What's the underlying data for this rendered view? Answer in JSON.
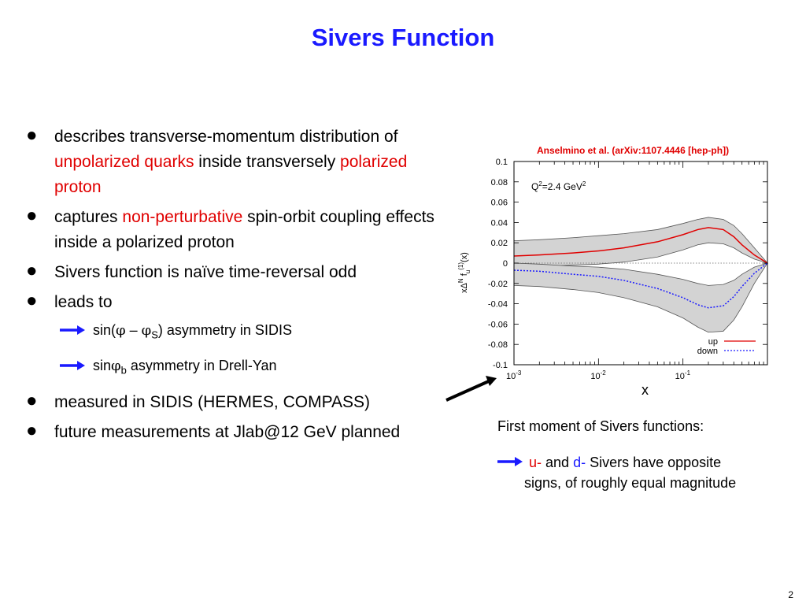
{
  "title": "Sivers Function",
  "bullets": {
    "b1": {
      "t1": "describes transverse-momentum distribution of ",
      "t2": "unpolarized quarks",
      "t3": " inside transversely ",
      "t4": "polarized proton"
    },
    "b2": {
      "t1": "captures ",
      "t2": "non-perturbative",
      "t3": " spin-orbit coupling effects inside a polarized proton"
    },
    "b3": "Sivers function is naïve time-reversal odd",
    "b4": "leads to",
    "sub1": {
      "a": "sin(",
      "phi": "φ",
      "dash": " – ",
      "phiS": "φ",
      "S": "S",
      "b": ") asymmetry in SIDIS"
    },
    "sub2": {
      "a": "sin",
      "phi": "φ",
      "sub": "b",
      "b": " asymmetry in Drell-Yan"
    },
    "b5": "measured in SIDIS (HERMES, COMPASS)",
    "b6": "future measurements at Jlab@12 GeV planned"
  },
  "citation": "Anselmino et al. (arXiv:1107.4446 [hep-ph])",
  "caption": {
    "line1": "First moment of Sivers functions:",
    "u": "u-",
    "and": " and ",
    "d": "d-",
    "rest": " Sivers have opposite",
    "line2": "signs, of roughly equal magnitude"
  },
  "page_number": "2",
  "colors": {
    "title": "#1a1aff",
    "highlight_red": "#e00000",
    "up": "#e00000",
    "down": "#1a1aff",
    "band": "#d3d3d3"
  },
  "chart_data": {
    "type": "line",
    "title": "",
    "annotation": "Q²=2.4 GeV²",
    "xlabel": "x",
    "ylabel": "xΔ^N f_u^(1)(x)",
    "xscale": "log",
    "xlim": [
      0.001,
      1
    ],
    "ylim": [
      -0.1,
      0.1
    ],
    "x_ticks": [
      "10-3",
      "10-2",
      "10-1"
    ],
    "y_ticks": [
      0.1,
      0.08,
      0.06,
      0.04,
      0.02,
      0,
      -0.02,
      -0.04,
      -0.06,
      -0.08,
      -0.1
    ],
    "y_tick_labels": [
      "0.1",
      "0.08",
      "0.06",
      "0.04",
      "0.02",
      "0",
      "-0.02",
      "-0.04",
      "-0.06",
      "-0.08",
      "-0.1"
    ],
    "legend_position": "bottom-right",
    "series": [
      {
        "name": "up",
        "color": "#e00000",
        "dash": "solid",
        "points": [
          [
            0.001,
            0.007
          ],
          [
            0.002,
            0.008
          ],
          [
            0.005,
            0.01
          ],
          [
            0.01,
            0.012
          ],
          [
            0.02,
            0.015
          ],
          [
            0.05,
            0.021
          ],
          [
            0.1,
            0.028
          ],
          [
            0.15,
            0.033
          ],
          [
            0.2,
            0.035
          ],
          [
            0.3,
            0.033
          ],
          [
            0.4,
            0.026
          ],
          [
            0.5,
            0.018
          ],
          [
            0.7,
            0.008
          ],
          [
            1,
            0
          ]
        ],
        "band_upper": [
          [
            0.001,
            0.022
          ],
          [
            0.002,
            0.023
          ],
          [
            0.005,
            0.025
          ],
          [
            0.01,
            0.027
          ],
          [
            0.02,
            0.029
          ],
          [
            0.05,
            0.033
          ],
          [
            0.1,
            0.039
          ],
          [
            0.15,
            0.043
          ],
          [
            0.2,
            0.045
          ],
          [
            0.3,
            0.043
          ],
          [
            0.4,
            0.037
          ],
          [
            0.5,
            0.029
          ],
          [
            0.7,
            0.015
          ],
          [
            1,
            0
          ]
        ],
        "band_lower": [
          [
            0.001,
            -0.003
          ],
          [
            0.002,
            -0.003
          ],
          [
            0.005,
            -0.002
          ],
          [
            0.01,
            -0.001
          ],
          [
            0.02,
            0.001
          ],
          [
            0.05,
            0.006
          ],
          [
            0.1,
            0.013
          ],
          [
            0.15,
            0.018
          ],
          [
            0.2,
            0.02
          ],
          [
            0.3,
            0.019
          ],
          [
            0.4,
            0.015
          ],
          [
            0.5,
            0.01
          ],
          [
            0.7,
            0.004
          ],
          [
            1,
            0
          ]
        ]
      },
      {
        "name": "down",
        "color": "#1a1aff",
        "dash": "dotted",
        "points": [
          [
            0.001,
            -0.007
          ],
          [
            0.002,
            -0.008
          ],
          [
            0.005,
            -0.011
          ],
          [
            0.01,
            -0.013
          ],
          [
            0.02,
            -0.017
          ],
          [
            0.05,
            -0.025
          ],
          [
            0.1,
            -0.034
          ],
          [
            0.15,
            -0.041
          ],
          [
            0.2,
            -0.044
          ],
          [
            0.3,
            -0.042
          ],
          [
            0.4,
            -0.033
          ],
          [
            0.5,
            -0.023
          ],
          [
            0.7,
            -0.01
          ],
          [
            1,
            0
          ]
        ],
        "band_upper": [
          [
            0.001,
            0.0
          ],
          [
            0.002,
            -0.001
          ],
          [
            0.005,
            -0.003
          ],
          [
            0.01,
            -0.004
          ],
          [
            0.02,
            -0.006
          ],
          [
            0.05,
            -0.011
          ],
          [
            0.1,
            -0.016
          ],
          [
            0.15,
            -0.02
          ],
          [
            0.2,
            -0.022
          ],
          [
            0.3,
            -0.021
          ],
          [
            0.4,
            -0.017
          ],
          [
            0.5,
            -0.011
          ],
          [
            0.7,
            -0.004
          ],
          [
            1,
            0
          ]
        ],
        "band_lower": [
          [
            0.001,
            -0.022
          ],
          [
            0.002,
            -0.023
          ],
          [
            0.005,
            -0.026
          ],
          [
            0.01,
            -0.029
          ],
          [
            0.02,
            -0.034
          ],
          [
            0.05,
            -0.043
          ],
          [
            0.1,
            -0.054
          ],
          [
            0.15,
            -0.063
          ],
          [
            0.2,
            -0.068
          ],
          [
            0.3,
            -0.067
          ],
          [
            0.4,
            -0.056
          ],
          [
            0.5,
            -0.043
          ],
          [
            0.7,
            -0.02
          ],
          [
            1,
            0
          ]
        ]
      }
    ]
  }
}
